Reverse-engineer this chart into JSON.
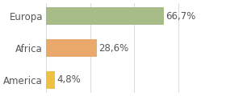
{
  "categories": [
    "America",
    "Africa",
    "Europa"
  ],
  "values": [
    4.8,
    28.6,
    66.7
  ],
  "labels": [
    "4,8%",
    "28,6%",
    "66,7%"
  ],
  "bar_colors": [
    "#f0c040",
    "#e8a96a",
    "#a8bc8a"
  ],
  "background_color": "#ffffff",
  "xlim": [
    0,
    100
  ],
  "bar_height": 0.55,
  "label_fontsize": 8.5,
  "tick_fontsize": 8.5,
  "grid_color": "#dddddd",
  "text_color": "#555555"
}
